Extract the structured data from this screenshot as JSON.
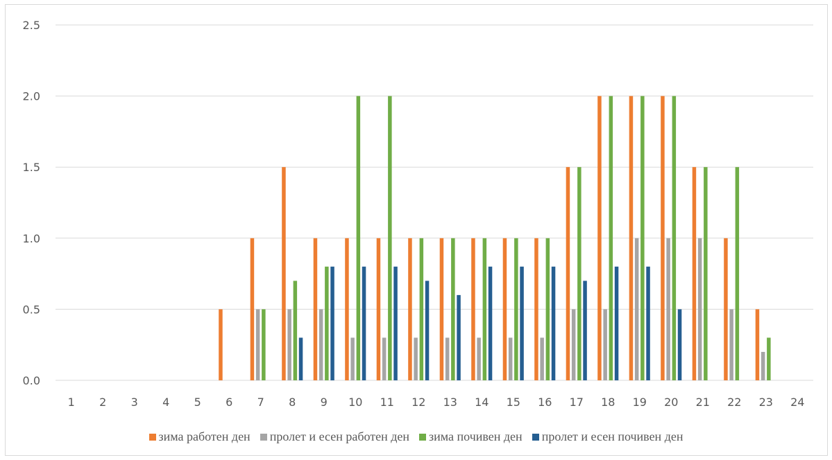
{
  "chart_data": {
    "type": "bar",
    "categories": [
      "1",
      "2",
      "3",
      "4",
      "5",
      "6",
      "7",
      "8",
      "9",
      "10",
      "11",
      "12",
      "13",
      "14",
      "15",
      "16",
      "17",
      "18",
      "19",
      "20",
      "21",
      "22",
      "23",
      "24"
    ],
    "ylim": [
      0,
      2.5
    ],
    "yticks": [
      "0.0",
      "0.5",
      "1.0",
      "1.5",
      "2.0",
      "2.5"
    ],
    "grid": true,
    "legend_position": "bottom",
    "series": [
      {
        "name": "зима работен ден",
        "color": "#ED7D31",
        "values": [
          0,
          0,
          0,
          0,
          0,
          0.5,
          1,
          1.5,
          1,
          1,
          1,
          1,
          1,
          1,
          1,
          1,
          1.5,
          2,
          2,
          2,
          1.5,
          1,
          0.5,
          0
        ]
      },
      {
        "name": "пролет и есен работен ден",
        "color": "#A5A5A5",
        "values": [
          0,
          0,
          0,
          0,
          0,
          0,
          0.5,
          0.5,
          0.5,
          0.3,
          0.3,
          0.3,
          0.3,
          0.3,
          0.3,
          0.3,
          0.5,
          0.5,
          1,
          1,
          1,
          0.5,
          0.2,
          0
        ]
      },
      {
        "name": "зима почивен ден",
        "color": "#70AD47",
        "values": [
          0,
          0,
          0,
          0,
          0,
          0,
          0.5,
          0.7,
          0.8,
          2,
          2,
          1,
          1,
          1,
          1,
          1,
          1.5,
          2,
          2,
          2,
          1.5,
          1.5,
          0.3,
          0
        ]
      },
      {
        "name": "пролет и есен почивен ден",
        "color": "#255E91",
        "values": [
          0,
          0,
          0,
          0,
          0,
          0,
          0,
          0.3,
          0.8,
          0.8,
          0.8,
          0.7,
          0.6,
          0.8,
          0.8,
          0.8,
          0.7,
          0.8,
          0.8,
          0.5,
          0,
          0,
          0,
          0
        ]
      }
    ]
  }
}
